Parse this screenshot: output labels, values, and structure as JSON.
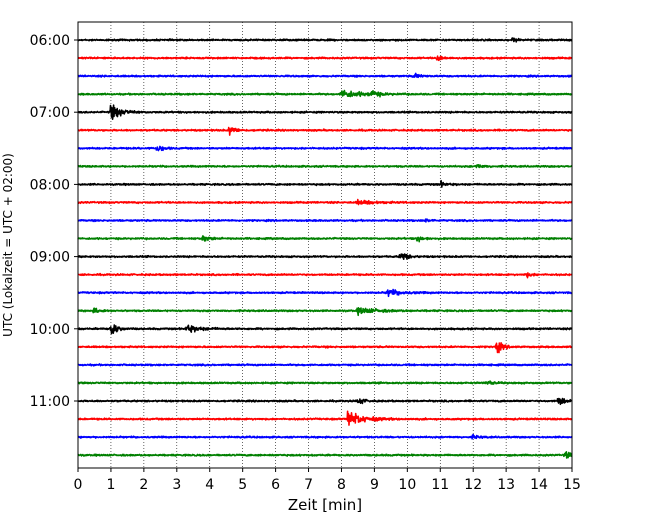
{
  "chart_data": {
    "type": "line",
    "subtype": "helicorder-seismogram",
    "xlabel": "Zeit  [min]",
    "ylabel": "UTC (Lokalzeit = UTC + 02:00)",
    "xlim": [
      0,
      15
    ],
    "x_ticks": [
      0,
      1,
      2,
      3,
      4,
      5,
      6,
      7,
      8,
      9,
      10,
      11,
      12,
      13,
      14,
      15
    ],
    "y_ticks": [
      "06:00",
      "07:00",
      "08:00",
      "09:00",
      "10:00",
      "11:00"
    ],
    "grid": "vertical dotted",
    "trace_interval_min": 15,
    "trace_start": "06:00",
    "color_cycle": [
      "#000000",
      "#ff0000",
      "#0000ff",
      "#008000"
    ],
    "traces": [
      {
        "start": "06:00",
        "color": "#000000",
        "events": [
          {
            "x": 13.2,
            "amp": 0.2
          }
        ]
      },
      {
        "start": "06:15",
        "color": "#ff0000",
        "events": [
          {
            "x": 10.9,
            "amp": 0.35
          }
        ]
      },
      {
        "start": "06:30",
        "color": "#0000ff",
        "events": [
          {
            "x": 10.2,
            "amp": 0.3
          }
        ]
      },
      {
        "start": "06:45",
        "color": "#008000",
        "events": [
          {
            "x": 8.0,
            "amp": 0.5,
            "width": 1.2
          },
          {
            "x": 8.9,
            "amp": 0.45
          }
        ]
      },
      {
        "start": "07:00",
        "color": "#000000",
        "events": [
          {
            "x": 1.0,
            "amp": 1.0,
            "width": 0.6
          }
        ]
      },
      {
        "start": "07:15",
        "color": "#ff0000",
        "events": [
          {
            "x": 4.6,
            "amp": 0.55
          }
        ]
      },
      {
        "start": "07:30",
        "color": "#0000ff",
        "events": [
          {
            "x": 2.4,
            "amp": 0.45
          }
        ]
      },
      {
        "start": "07:45",
        "color": "#008000",
        "events": [
          {
            "x": 12.1,
            "amp": 0.25
          }
        ]
      },
      {
        "start": "08:00",
        "color": "#000000",
        "events": [
          {
            "x": 11.0,
            "amp": 0.3
          }
        ]
      },
      {
        "start": "08:15",
        "color": "#ff0000",
        "events": [
          {
            "x": 8.5,
            "amp": 0.25,
            "width": 1.0
          }
        ]
      },
      {
        "start": "08:30",
        "color": "#0000ff",
        "events": [
          {
            "x": 10.5,
            "amp": 0.2
          }
        ]
      },
      {
        "start": "08:45",
        "color": "#008000",
        "events": [
          {
            "x": 3.8,
            "amp": 0.4
          },
          {
            "x": 10.3,
            "amp": 0.35
          }
        ]
      },
      {
        "start": "09:00",
        "color": "#000000",
        "events": [
          {
            "x": 9.8,
            "amp": 0.65
          }
        ]
      },
      {
        "start": "09:15",
        "color": "#ff0000",
        "events": [
          {
            "x": 13.6,
            "amp": 0.3
          }
        ]
      },
      {
        "start": "09:30",
        "color": "#0000ff",
        "events": [
          {
            "x": 9.4,
            "amp": 0.4,
            "width": 0.8
          }
        ]
      },
      {
        "start": "09:45",
        "color": "#008000",
        "events": [
          {
            "x": 0.5,
            "amp": 0.35
          },
          {
            "x": 8.5,
            "amp": 0.35,
            "width": 1.2
          }
        ]
      },
      {
        "start": "10:00",
        "color": "#000000",
        "events": [
          {
            "x": 1.0,
            "amp": 0.9
          },
          {
            "x": 3.3,
            "amp": 0.45,
            "width": 0.8
          }
        ]
      },
      {
        "start": "10:15",
        "color": "#ff0000",
        "events": [
          {
            "x": 12.7,
            "amp": 0.75
          }
        ]
      },
      {
        "start": "10:30",
        "color": "#0000ff",
        "events": []
      },
      {
        "start": "10:45",
        "color": "#008000",
        "events": [
          {
            "x": 12.4,
            "amp": 0.3
          }
        ]
      },
      {
        "start": "11:00",
        "color": "#000000",
        "events": [
          {
            "x": 8.5,
            "amp": 0.4
          },
          {
            "x": 14.6,
            "amp": 0.65
          }
        ]
      },
      {
        "start": "11:15",
        "color": "#ff0000",
        "events": [
          {
            "x": 8.2,
            "amp": 1.0,
            "width": 0.9
          }
        ]
      },
      {
        "start": "11:30",
        "color": "#0000ff",
        "events": [
          {
            "x": 12.0,
            "amp": 0.2
          }
        ]
      },
      {
        "start": "11:45",
        "color": "#008000",
        "events": [
          {
            "x": 14.8,
            "amp": 0.45
          }
        ]
      }
    ]
  }
}
